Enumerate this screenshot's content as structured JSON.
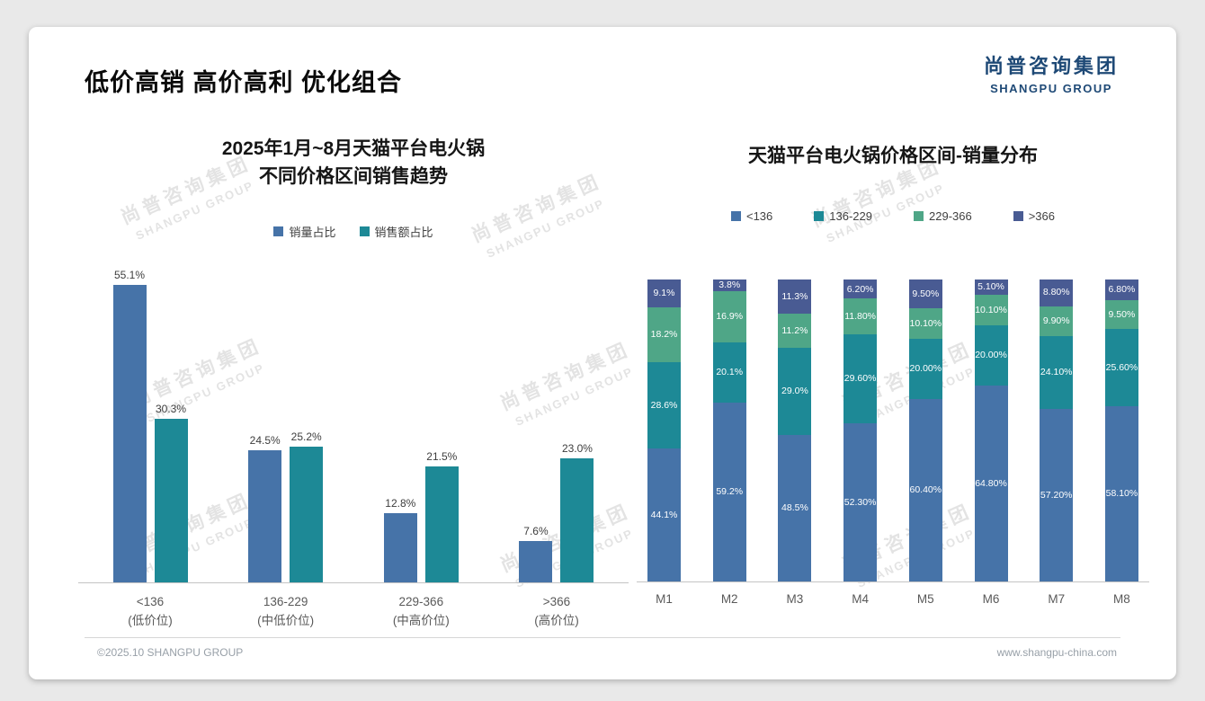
{
  "page": {
    "title": "低价高销 高价高利 优化组合",
    "logo": {
      "cn": "尚普咨询集团",
      "en": "SHANGPU GROUP"
    },
    "watermark": {
      "cn": "尚普咨询集团",
      "en": "SHANGPU GROUP"
    },
    "footer": {
      "left": "©2025.10 SHANGPU GROUP",
      "right": "www.shangpu-china.com"
    }
  },
  "colors": {
    "brand_navy": "#1e4976",
    "bar_blue": "#4673a8",
    "bar_teal": "#1d8996",
    "bar_green": "#4fa687",
    "bar_slate": "#495b93",
    "axis_gray": "#c4c4c4"
  },
  "chart_data": [
    {
      "type": "bar",
      "stacked": false,
      "title": "2025年1月~8月天猫平台电火锅 不同价格区间销售趋势",
      "title_lines": [
        "2025年1月~8月天猫平台电火锅",
        "不同价格区间销售趋势"
      ],
      "categories": [
        "<136",
        "136-229",
        "229-366",
        ">366"
      ],
      "category_sublabels": [
        "(低价位)",
        "(中低价位)",
        "(中高价位)",
        "(高价位)"
      ],
      "series": [
        {
          "name": "销量占比",
          "color": "#4673a8",
          "values": [
            55.1,
            24.5,
            12.8,
            7.6
          ],
          "labels": [
            "55.1%",
            "24.5%",
            "12.8%",
            "7.6%"
          ]
        },
        {
          "name": "销售额占比",
          "color": "#1d8996",
          "values": [
            30.3,
            25.2,
            21.5,
            23.0
          ],
          "labels": [
            "30.3%",
            "25.2%",
            "21.5%",
            "23.0%"
          ]
        }
      ],
      "unit": "%",
      "ylim": [
        0,
        60
      ],
      "grid": false,
      "legend_position": "top"
    },
    {
      "type": "bar",
      "stacked": true,
      "title": "天猫平台电火锅价格区间-销量分布",
      "categories": [
        "M1",
        "M2",
        "M3",
        "M4",
        "M5",
        "M6",
        "M7",
        "M8"
      ],
      "series": [
        {
          "name": "<136",
          "color": "#4673a8",
          "values": [
            44.1,
            59.2,
            48.5,
            52.3,
            60.4,
            64.8,
            57.2,
            58.1
          ],
          "labels": [
            "44.1%",
            "59.2%",
            "48.5%",
            "52.30%",
            "60.40%",
            "64.80%",
            "57.20%",
            "58.10%"
          ]
        },
        {
          "name": "136-229",
          "color": "#1d8996",
          "values": [
            28.6,
            20.1,
            29.0,
            29.6,
            20.0,
            20.0,
            24.1,
            25.6
          ],
          "labels": [
            "28.6%",
            "20.1%",
            "29.0%",
            "29.60%",
            "20.00%",
            "20.00%",
            "24.10%",
            "25.60%"
          ]
        },
        {
          "name": "229-366",
          "color": "#4fa687",
          "values": [
            18.2,
            16.9,
            11.2,
            11.8,
            10.1,
            10.1,
            9.9,
            9.5
          ],
          "labels": [
            "18.2%",
            "16.9%",
            "11.2%",
            "11.80%",
            "10.10%",
            "10.10%",
            "9.90%",
            "9.50%"
          ]
        },
        {
          "name": ">366",
          "color": "#495b93",
          "values": [
            9.1,
            3.8,
            11.3,
            6.2,
            9.5,
            5.1,
            8.8,
            6.8
          ],
          "labels": [
            "9.1%",
            "3.8%",
            "11.3%",
            "6.20%",
            "9.50%",
            "5.10%",
            "8.80%",
            "6.80%"
          ]
        }
      ],
      "unit": "%",
      "ylim": [
        0,
        100
      ],
      "grid": false,
      "legend_position": "top"
    }
  ]
}
